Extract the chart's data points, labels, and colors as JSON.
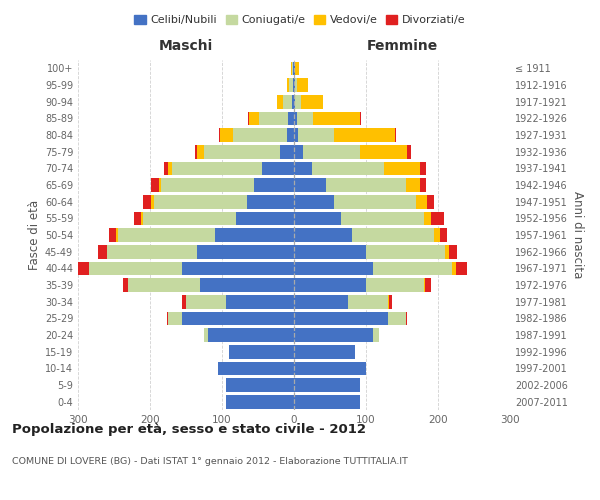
{
  "age_groups": [
    "0-4",
    "5-9",
    "10-14",
    "15-19",
    "20-24",
    "25-29",
    "30-34",
    "35-39",
    "40-44",
    "45-49",
    "50-54",
    "55-59",
    "60-64",
    "65-69",
    "70-74",
    "75-79",
    "80-84",
    "85-89",
    "90-94",
    "95-99",
    "100+"
  ],
  "birth_years": [
    "2007-2011",
    "2002-2006",
    "1997-2001",
    "1992-1996",
    "1987-1991",
    "1982-1986",
    "1977-1981",
    "1972-1976",
    "1967-1971",
    "1962-1966",
    "1957-1961",
    "1952-1956",
    "1947-1951",
    "1942-1946",
    "1937-1941",
    "1932-1936",
    "1927-1931",
    "1922-1926",
    "1917-1921",
    "1912-1916",
    "≤ 1911"
  ],
  "males": {
    "celibe": [
      95,
      95,
      105,
      90,
      120,
      155,
      95,
      130,
      155,
      135,
      110,
      80,
      65,
      55,
      45,
      20,
      10,
      8,
      3,
      2,
      1
    ],
    "coniugato": [
      0,
      0,
      0,
      0,
      5,
      20,
      55,
      100,
      130,
      125,
      135,
      130,
      130,
      130,
      125,
      105,
      75,
      40,
      12,
      5,
      2
    ],
    "vedovo": [
      0,
      0,
      0,
      0,
      0,
      0,
      0,
      0,
      0,
      0,
      2,
      2,
      3,
      3,
      5,
      10,
      18,
      15,
      8,
      3,
      1
    ],
    "divorziato": [
      0,
      0,
      0,
      0,
      0,
      2,
      5,
      8,
      18,
      12,
      10,
      10,
      12,
      10,
      5,
      3,
      1,
      1,
      0,
      0,
      0
    ]
  },
  "females": {
    "nubile": [
      92,
      92,
      100,
      85,
      110,
      130,
      75,
      100,
      110,
      100,
      80,
      65,
      55,
      45,
      25,
      12,
      5,
      4,
      2,
      1,
      1
    ],
    "coniugata": [
      0,
      0,
      0,
      0,
      8,
      25,
      55,
      80,
      110,
      110,
      115,
      115,
      115,
      110,
      100,
      80,
      50,
      22,
      8,
      3,
      1
    ],
    "vedova": [
      0,
      0,
      0,
      0,
      0,
      0,
      2,
      2,
      5,
      5,
      8,
      10,
      15,
      20,
      50,
      65,
      85,
      65,
      30,
      15,
      5
    ],
    "divorziata": [
      0,
      0,
      0,
      0,
      0,
      2,
      4,
      8,
      15,
      12,
      10,
      18,
      10,
      8,
      8,
      5,
      2,
      2,
      0,
      0,
      0
    ]
  },
  "colors": {
    "celibe": "#4472c4",
    "coniugato": "#c5d9a0",
    "vedovo": "#ffc000",
    "divorziato": "#e02020"
  },
  "legend_labels": [
    "Celibi/Nubili",
    "Coniugati/e",
    "Vedovi/e",
    "Divorziati/e"
  ],
  "title": "Popolazione per età, sesso e stato civile - 2012",
  "subtitle": "COMUNE DI LOVERE (BG) - Dati ISTAT 1° gennaio 2012 - Elaborazione TUTTITALIA.IT",
  "ylabel": "Fasce di età",
  "ylabel_right": "Anni di nascita",
  "xlabel_left": "Maschi",
  "xlabel_right": "Femmine",
  "xlim": 300,
  "bg_color": "#ffffff",
  "grid_color": "#cccccc"
}
